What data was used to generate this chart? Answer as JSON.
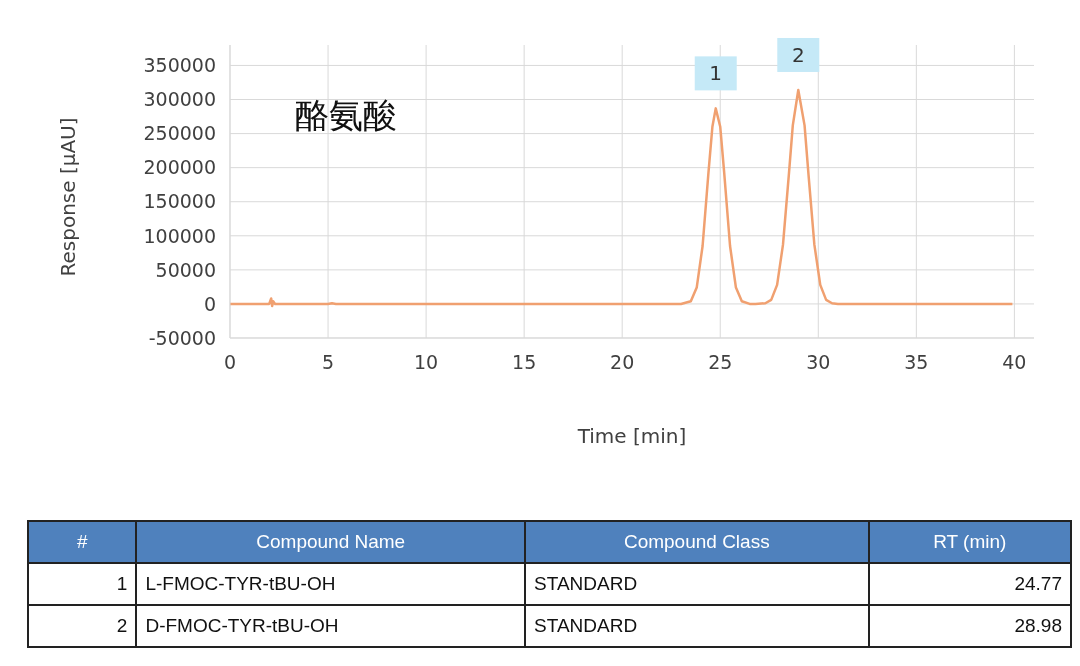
{
  "chart_data": {
    "type": "line",
    "title": "酪氨酸",
    "xlabel": "Time [min]",
    "ylabel": "Response [µAU]",
    "x": [
      0,
      1,
      2.0,
      2.1,
      2.15,
      2.2,
      2.3,
      3,
      5,
      5.2,
      5.4,
      8,
      12,
      16,
      20,
      22,
      23.0,
      23.5,
      23.8,
      24.1,
      24.4,
      24.6,
      24.77,
      25.0,
      25.2,
      25.5,
      25.8,
      26.1,
      26.5,
      26.8,
      27.3,
      27.6,
      27.9,
      28.2,
      28.5,
      28.7,
      28.98,
      29.3,
      29.5,
      29.8,
      30.1,
      30.4,
      30.7,
      31,
      33,
      36,
      39.9
    ],
    "series": [
      {
        "color": "#f0a070",
        "values": [
          0,
          0,
          0,
          8000,
          -3000,
          4000,
          0,
          0,
          0,
          1000,
          0,
          0,
          0,
          0,
          0,
          0,
          0,
          4000,
          24000,
          85000,
          193000,
          260000,
          287000,
          260000,
          193000,
          85000,
          24000,
          4000,
          0,
          0,
          1000,
          6000,
          28000,
          87000,
          190000,
          262000,
          314000,
          262000,
          190000,
          87000,
          28000,
          6000,
          1000,
          0,
          0,
          0,
          0
        ]
      }
    ],
    "xlim": [
      0,
      41
    ],
    "xticks": [
      0,
      5,
      10,
      15,
      20,
      25,
      30,
      35,
      40
    ],
    "ylim": [
      -50000,
      380000
    ],
    "yticks": [
      -50000,
      0,
      50000,
      100000,
      150000,
      200000,
      250000,
      300000,
      350000
    ],
    "grid": true,
    "legend": false,
    "marker": "none",
    "line_style": "solid",
    "annotations": [
      {
        "text": "1",
        "x": 24.77,
        "y": 287000
      },
      {
        "text": "2",
        "x": 28.98,
        "y": 314000
      },
      "#",
      "Compound Name",
      "Compound Class",
      "RT (min)",
      "1",
      "L-FMOC-TYR-tBU-OH",
      "STANDARD",
      "24.77",
      "2",
      "D-FMOC-TYR-tBU-OH",
      "STANDARD",
      "28.98"
    ]
  }
}
